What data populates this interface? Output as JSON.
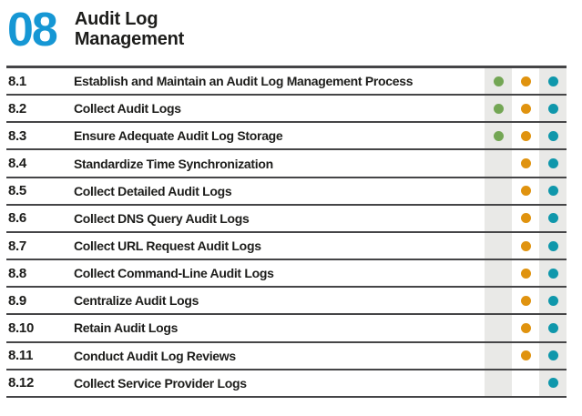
{
  "header": {
    "control_number": "08",
    "title_line1": "Audit Log",
    "title_line2": "Management"
  },
  "colors": {
    "accent_blue": "#1697d4",
    "ig1_green": "#73a654",
    "ig2_orange": "#e0930f",
    "ig3_teal": "#0f97ab",
    "column_shade": "#e9e9e7",
    "rule_dark": "#454547"
  },
  "table": {
    "rows": [
      {
        "id": "8.1",
        "title": "Establish and Maintain an Audit Log Management Process",
        "ig1": true,
        "ig2": true,
        "ig3": true
      },
      {
        "id": "8.2",
        "title": "Collect Audit Logs",
        "ig1": true,
        "ig2": true,
        "ig3": true
      },
      {
        "id": "8.3",
        "title": "Ensure Adequate Audit Log Storage",
        "ig1": true,
        "ig2": true,
        "ig3": true
      },
      {
        "id": "8.4",
        "title": "Standardize Time Synchronization",
        "ig1": false,
        "ig2": true,
        "ig3": true
      },
      {
        "id": "8.5",
        "title": "Collect Detailed Audit Logs",
        "ig1": false,
        "ig2": true,
        "ig3": true
      },
      {
        "id": "8.6",
        "title": "Collect DNS Query Audit Logs",
        "ig1": false,
        "ig2": true,
        "ig3": true
      },
      {
        "id": "8.7",
        "title": "Collect URL Request Audit Logs",
        "ig1": false,
        "ig2": true,
        "ig3": true
      },
      {
        "id": "8.8",
        "title": "Collect Command-Line Audit Logs",
        "ig1": false,
        "ig2": true,
        "ig3": true
      },
      {
        "id": "8.9",
        "title": "Centralize Audit Logs",
        "ig1": false,
        "ig2": true,
        "ig3": true
      },
      {
        "id": "8.10",
        "title": "Retain Audit Logs",
        "ig1": false,
        "ig2": true,
        "ig3": true
      },
      {
        "id": "8.11",
        "title": "Conduct Audit Log Reviews",
        "ig1": false,
        "ig2": true,
        "ig3": true
      },
      {
        "id": "8.12",
        "title": "Collect Service Provider Logs",
        "ig1": false,
        "ig2": false,
        "ig3": true
      }
    ]
  }
}
